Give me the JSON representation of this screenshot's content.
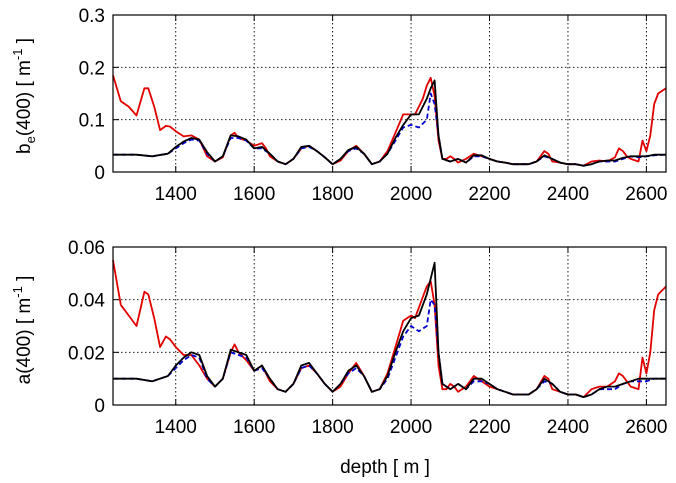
{
  "chart_data": [
    {
      "type": "line",
      "panel": "top",
      "ylabel_main": "b",
      "ylabel_sub": "e",
      "ylabel_tail": "(400) [ m",
      "ylabel_sup": "-1",
      "ylabel_end": " ]",
      "xlim": [
        1240,
        2650
      ],
      "ylim": [
        0,
        0.3
      ],
      "xticks": [
        1400,
        1600,
        1800,
        2000,
        2200,
        2400,
        2600
      ],
      "yticks": [
        0,
        0.1,
        0.2,
        0.3
      ],
      "ytick_labels": [
        "0",
        "0.1",
        "0.2",
        "0.3"
      ],
      "grid": true,
      "series": [
        {
          "color": "#e00000",
          "style": "solid",
          "x": [
            1240,
            1260,
            1280,
            1300,
            1320,
            1330,
            1345,
            1360,
            1375,
            1385,
            1400,
            1420,
            1440,
            1460,
            1480,
            1500,
            1520,
            1540,
            1550,
            1560,
            1580,
            1600,
            1620,
            1630,
            1640,
            1660,
            1680,
            1700,
            1720,
            1740,
            1760,
            1780,
            1800,
            1820,
            1840,
            1860,
            1880,
            1900,
            1920,
            1940,
            1960,
            1980,
            2000,
            2010,
            2020,
            2030,
            2040,
            2050,
            2060,
            2070,
            2080,
            2090,
            2100,
            2110,
            2120,
            2140,
            2160,
            2180,
            2200,
            2220,
            2240,
            2260,
            2280,
            2300,
            2320,
            2340,
            2350,
            2360,
            2380,
            2400,
            2420,
            2440,
            2460,
            2480,
            2500,
            2520,
            2530,
            2540,
            2550,
            2560,
            2580,
            2590,
            2600,
            2610,
            2620,
            2630,
            2650
          ],
          "y": [
            0.185,
            0.135,
            0.125,
            0.108,
            0.16,
            0.16,
            0.125,
            0.08,
            0.088,
            0.087,
            0.078,
            0.068,
            0.07,
            0.062,
            0.03,
            0.02,
            0.028,
            0.07,
            0.075,
            0.065,
            0.06,
            0.05,
            0.055,
            0.045,
            0.03,
            0.02,
            0.015,
            0.025,
            0.045,
            0.05,
            0.04,
            0.028,
            0.015,
            0.022,
            0.04,
            0.05,
            0.035,
            0.015,
            0.02,
            0.04,
            0.075,
            0.11,
            0.11,
            0.11,
            0.125,
            0.14,
            0.165,
            0.18,
            0.145,
            0.06,
            0.025,
            0.025,
            0.03,
            0.025,
            0.018,
            0.025,
            0.035,
            0.03,
            0.025,
            0.02,
            0.018,
            0.015,
            0.015,
            0.015,
            0.02,
            0.04,
            0.035,
            0.02,
            0.018,
            0.015,
            0.015,
            0.012,
            0.02,
            0.022,
            0.02,
            0.028,
            0.045,
            0.04,
            0.03,
            0.025,
            0.02,
            0.06,
            0.04,
            0.07,
            0.13,
            0.15,
            0.16
          ]
        },
        {
          "color": "#0000d0",
          "style": "dashed",
          "x": [
            1240,
            1300,
            1340,
            1380,
            1400,
            1420,
            1440,
            1460,
            1480,
            1500,
            1520,
            1540,
            1560,
            1580,
            1600,
            1620,
            1640,
            1660,
            1680,
            1700,
            1720,
            1740,
            1760,
            1780,
            1800,
            1820,
            1840,
            1860,
            1880,
            1900,
            1920,
            1940,
            1960,
            1980,
            2000,
            2020,
            2040,
            2050,
            2060,
            2070,
            2080,
            2100,
            2120,
            2140,
            2160,
            2180,
            2200,
            2220,
            2240,
            2260,
            2280,
            2300,
            2320,
            2340,
            2360,
            2380,
            2400,
            2420,
            2440,
            2460,
            2480,
            2500,
            2520,
            2540,
            2560,
            2580,
            2600,
            2620,
            2650
          ],
          "y": [
            0.033,
            0.033,
            0.03,
            0.035,
            0.045,
            0.055,
            0.062,
            0.06,
            0.035,
            0.02,
            0.03,
            0.065,
            0.065,
            0.06,
            0.045,
            0.045,
            0.035,
            0.02,
            0.015,
            0.025,
            0.045,
            0.048,
            0.04,
            0.028,
            0.015,
            0.025,
            0.04,
            0.045,
            0.035,
            0.015,
            0.02,
            0.035,
            0.06,
            0.085,
            0.09,
            0.085,
            0.1,
            0.15,
            0.13,
            0.07,
            0.025,
            0.02,
            0.025,
            0.018,
            0.03,
            0.03,
            0.025,
            0.02,
            0.018,
            0.015,
            0.015,
            0.015,
            0.02,
            0.03,
            0.025,
            0.018,
            0.015,
            0.015,
            0.012,
            0.015,
            0.02,
            0.02,
            0.02,
            0.025,
            0.03,
            0.028,
            0.03,
            0.032,
            0.033
          ]
        },
        {
          "color": "#000000",
          "style": "solid",
          "x": [
            1240,
            1300,
            1340,
            1380,
            1400,
            1420,
            1440,
            1460,
            1480,
            1500,
            1520,
            1540,
            1560,
            1580,
            1600,
            1620,
            1640,
            1660,
            1680,
            1700,
            1720,
            1740,
            1760,
            1780,
            1800,
            1820,
            1840,
            1860,
            1880,
            1900,
            1920,
            1940,
            1960,
            1980,
            2000,
            2020,
            2040,
            2050,
            2060,
            2070,
            2080,
            2100,
            2120,
            2140,
            2160,
            2180,
            2200,
            2220,
            2240,
            2260,
            2280,
            2300,
            2320,
            2340,
            2360,
            2380,
            2400,
            2420,
            2440,
            2460,
            2480,
            2500,
            2520,
            2540,
            2560,
            2580,
            2600,
            2620,
            2650
          ],
          "y": [
            0.033,
            0.033,
            0.03,
            0.035,
            0.048,
            0.058,
            0.065,
            0.062,
            0.038,
            0.02,
            0.03,
            0.07,
            0.068,
            0.062,
            0.045,
            0.048,
            0.035,
            0.02,
            0.015,
            0.025,
            0.048,
            0.05,
            0.04,
            0.028,
            0.015,
            0.025,
            0.042,
            0.048,
            0.035,
            0.015,
            0.02,
            0.035,
            0.065,
            0.09,
            0.11,
            0.11,
            0.14,
            0.16,
            0.175,
            0.07,
            0.025,
            0.02,
            0.025,
            0.018,
            0.032,
            0.032,
            0.025,
            0.02,
            0.018,
            0.015,
            0.015,
            0.015,
            0.02,
            0.032,
            0.025,
            0.018,
            0.015,
            0.015,
            0.012,
            0.015,
            0.02,
            0.022,
            0.022,
            0.027,
            0.03,
            0.03,
            0.03,
            0.033,
            0.033
          ]
        }
      ]
    },
    {
      "type": "line",
      "panel": "bottom",
      "ylabel_main": "a(400) [ m",
      "ylabel_sup": "-1",
      "ylabel_end": " ]",
      "xlabel": "depth [ m ]",
      "xlim": [
        1240,
        2650
      ],
      "ylim": [
        0,
        0.06
      ],
      "xticks": [
        1400,
        1600,
        1800,
        2000,
        2200,
        2400,
        2600
      ],
      "yticks": [
        0,
        0.02,
        0.04,
        0.06
      ],
      "ytick_labels": [
        "0",
        "0.02",
        "0.04",
        "0.06"
      ],
      "grid": true,
      "series": [
        {
          "color": "#e00000",
          "style": "solid",
          "x": [
            1240,
            1260,
            1280,
            1300,
            1320,
            1330,
            1345,
            1360,
            1375,
            1385,
            1400,
            1420,
            1440,
            1460,
            1480,
            1500,
            1520,
            1540,
            1550,
            1560,
            1580,
            1600,
            1620,
            1640,
            1660,
            1680,
            1700,
            1720,
            1740,
            1760,
            1780,
            1800,
            1820,
            1840,
            1860,
            1880,
            1900,
            1920,
            1940,
            1960,
            1980,
            2000,
            2010,
            2020,
            2030,
            2040,
            2050,
            2060,
            2070,
            2080,
            2090,
            2100,
            2110,
            2120,
            2140,
            2160,
            2180,
            2200,
            2220,
            2240,
            2260,
            2280,
            2300,
            2320,
            2340,
            2350,
            2360,
            2380,
            2400,
            2420,
            2440,
            2460,
            2480,
            2500,
            2520,
            2530,
            2540,
            2550,
            2560,
            2580,
            2590,
            2600,
            2610,
            2620,
            2630,
            2650
          ],
          "y": [
            0.055,
            0.038,
            0.034,
            0.03,
            0.043,
            0.042,
            0.033,
            0.022,
            0.026,
            0.025,
            0.022,
            0.019,
            0.019,
            0.015,
            0.01,
            0.007,
            0.01,
            0.02,
            0.023,
            0.02,
            0.017,
            0.013,
            0.015,
            0.009,
            0.006,
            0.005,
            0.008,
            0.014,
            0.015,
            0.012,
            0.008,
            0.005,
            0.007,
            0.012,
            0.016,
            0.011,
            0.005,
            0.006,
            0.012,
            0.022,
            0.032,
            0.034,
            0.033,
            0.037,
            0.041,
            0.045,
            0.047,
            0.038,
            0.015,
            0.006,
            0.006,
            0.008,
            0.007,
            0.005,
            0.007,
            0.011,
            0.009,
            0.007,
            0.006,
            0.005,
            0.004,
            0.004,
            0.004,
            0.006,
            0.011,
            0.01,
            0.006,
            0.005,
            0.004,
            0.004,
            0.003,
            0.006,
            0.007,
            0.007,
            0.009,
            0.012,
            0.011,
            0.009,
            0.007,
            0.006,
            0.018,
            0.012,
            0.02,
            0.036,
            0.042,
            0.045
          ]
        },
        {
          "color": "#0000d0",
          "style": "dashed",
          "x": [
            1240,
            1300,
            1340,
            1380,
            1400,
            1420,
            1440,
            1460,
            1480,
            1500,
            1520,
            1540,
            1560,
            1580,
            1600,
            1620,
            1640,
            1660,
            1680,
            1700,
            1720,
            1740,
            1760,
            1780,
            1800,
            1820,
            1840,
            1860,
            1880,
            1900,
            1920,
            1940,
            1960,
            1980,
            2000,
            2020,
            2040,
            2050,
            2060,
            2070,
            2080,
            2100,
            2120,
            2140,
            2160,
            2180,
            2200,
            2220,
            2240,
            2260,
            2280,
            2300,
            2320,
            2340,
            2360,
            2380,
            2400,
            2420,
            2440,
            2460,
            2480,
            2500,
            2520,
            2540,
            2560,
            2580,
            2600,
            2620,
            2650
          ],
          "y": [
            0.01,
            0.01,
            0.009,
            0.011,
            0.014,
            0.017,
            0.019,
            0.018,
            0.01,
            0.007,
            0.01,
            0.02,
            0.019,
            0.018,
            0.013,
            0.014,
            0.01,
            0.006,
            0.005,
            0.008,
            0.014,
            0.015,
            0.012,
            0.008,
            0.005,
            0.008,
            0.012,
            0.014,
            0.011,
            0.005,
            0.006,
            0.01,
            0.018,
            0.026,
            0.03,
            0.028,
            0.03,
            0.04,
            0.038,
            0.02,
            0.008,
            0.006,
            0.008,
            0.006,
            0.009,
            0.009,
            0.008,
            0.006,
            0.005,
            0.004,
            0.004,
            0.004,
            0.006,
            0.009,
            0.008,
            0.005,
            0.004,
            0.004,
            0.003,
            0.004,
            0.006,
            0.006,
            0.006,
            0.008,
            0.009,
            0.009,
            0.009,
            0.01,
            0.01
          ]
        },
        {
          "color": "#000000",
          "style": "solid",
          "x": [
            1240,
            1300,
            1340,
            1380,
            1400,
            1420,
            1440,
            1460,
            1480,
            1500,
            1520,
            1540,
            1560,
            1580,
            1600,
            1620,
            1640,
            1660,
            1680,
            1700,
            1720,
            1740,
            1760,
            1780,
            1800,
            1820,
            1840,
            1860,
            1880,
            1900,
            1920,
            1940,
            1960,
            1980,
            2000,
            2020,
            2040,
            2050,
            2060,
            2070,
            2080,
            2100,
            2120,
            2140,
            2160,
            2180,
            2200,
            2220,
            2240,
            2260,
            2280,
            2300,
            2320,
            2340,
            2360,
            2380,
            2400,
            2420,
            2440,
            2460,
            2480,
            2500,
            2520,
            2540,
            2560,
            2580,
            2600,
            2620,
            2650
          ],
          "y": [
            0.01,
            0.01,
            0.009,
            0.011,
            0.015,
            0.018,
            0.02,
            0.019,
            0.011,
            0.007,
            0.01,
            0.021,
            0.02,
            0.019,
            0.013,
            0.015,
            0.01,
            0.006,
            0.005,
            0.008,
            0.015,
            0.016,
            0.012,
            0.008,
            0.005,
            0.008,
            0.013,
            0.015,
            0.011,
            0.005,
            0.006,
            0.011,
            0.02,
            0.028,
            0.033,
            0.034,
            0.042,
            0.048,
            0.054,
            0.02,
            0.008,
            0.006,
            0.008,
            0.006,
            0.01,
            0.01,
            0.008,
            0.006,
            0.005,
            0.004,
            0.004,
            0.004,
            0.006,
            0.01,
            0.008,
            0.005,
            0.004,
            0.004,
            0.003,
            0.004,
            0.006,
            0.007,
            0.007,
            0.008,
            0.009,
            0.01,
            0.01,
            0.01,
            0.01
          ]
        }
      ]
    }
  ]
}
